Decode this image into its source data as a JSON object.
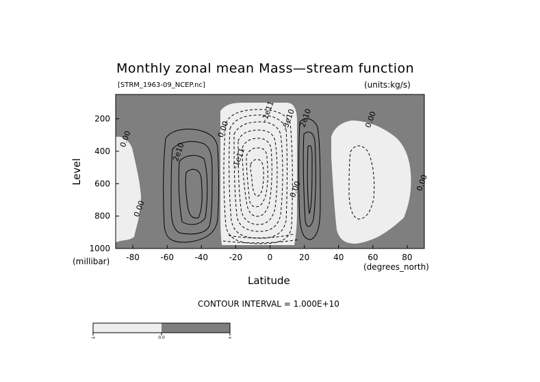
{
  "chart_data": {
    "type": "contour",
    "title": "Monthly zonal mean Mass—stream function",
    "subtitle_left": "[STRM_1963-09_NCEP.nc]",
    "subtitle_right": "(units:kg/s)",
    "xlabel": "Latitude",
    "ylabel": "Level",
    "x_units": "(degrees_north)",
    "y_units": "(millibar)",
    "xlim": [
      -90,
      90
    ],
    "ylim": [
      1000,
      50
    ],
    "x_ticks": [
      -80,
      -60,
      -40,
      -20,
      0,
      20,
      40,
      60,
      80
    ],
    "y_ticks": [
      200,
      400,
      600,
      800,
      1000
    ],
    "contour_interval_text": "CONTOUR INTERVAL = 1.000E+10",
    "contour_labels": [
      {
        "text": "0.00",
        "lat": -83,
        "lev": 330
      },
      {
        "text": "0.00",
        "lat": -75,
        "lev": 760
      },
      {
        "text": "2e10",
        "lat": -52,
        "lev": 410
      },
      {
        "text": "0.00",
        "lat": -26,
        "lev": 270
      },
      {
        "text": "-1e11",
        "lat": 0,
        "lev": 160
      },
      {
        "text": "-3e10",
        "lat": 12,
        "lev": 210
      },
      {
        "text": "-1e11",
        "lat": -17,
        "lev": 450
      },
      {
        "text": "2e10",
        "lat": 22,
        "lev": 200
      },
      {
        "text": "0.00",
        "lat": 16,
        "lev": 640
      },
      {
        "text": "0.00",
        "lat": 60,
        "lev": 210
      },
      {
        "text": "0.00",
        "lat": 90,
        "lev": 600
      }
    ],
    "colorbar": {
      "labels": [
        "-∞",
        "0.0",
        "∞"
      ],
      "colors": [
        "#eeeeee",
        "#7f7f7f"
      ]
    },
    "colors": {
      "positive": "#7f7f7f",
      "negative": "#eeeeee"
    }
  }
}
